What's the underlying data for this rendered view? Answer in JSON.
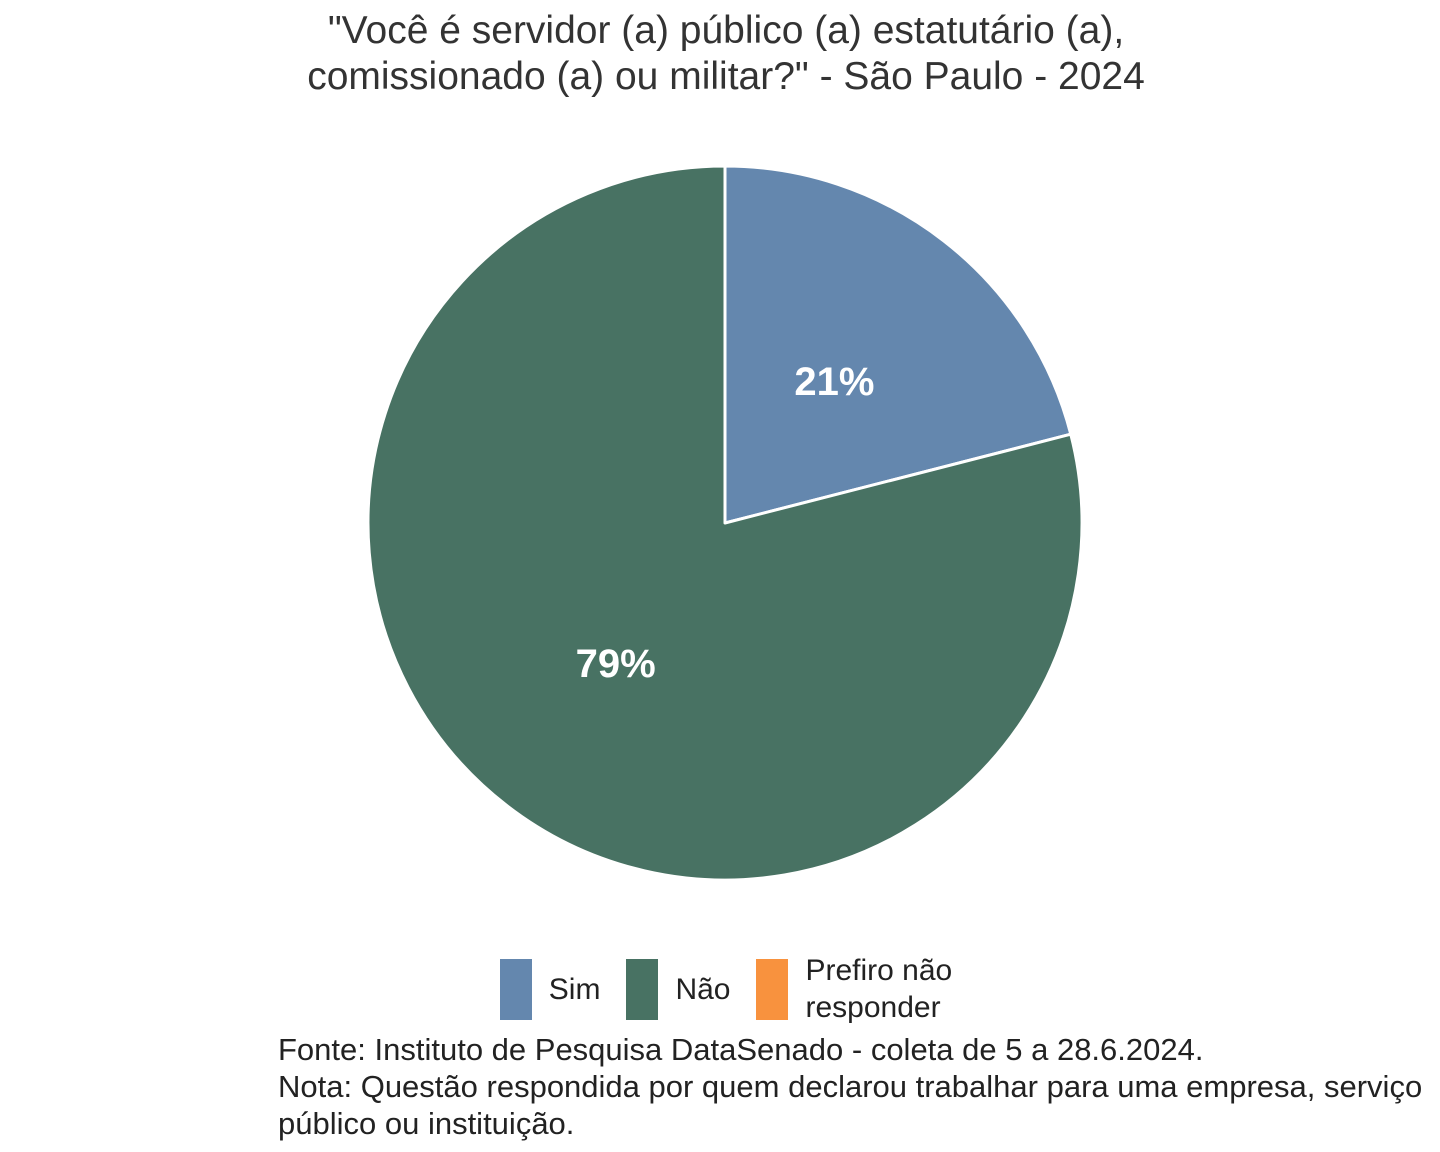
{
  "title": "\"Você é servidor (a) público (a) estatutário (a),\ncomissionado (a) ou militar?\" - São Paulo - 2024",
  "chart_data": {
    "type": "pie",
    "title": "\"Você é servidor (a) público (a) estatutário (a), comissionado (a) ou militar?\" - São Paulo - 2024",
    "categories": [
      "Sim",
      "Não",
      "Prefiro não responder"
    ],
    "values": [
      21,
      79,
      0
    ],
    "slices": [
      {
        "name": "sim",
        "label": "Sim",
        "value": 21,
        "display": "21%",
        "color": "#6487ae"
      },
      {
        "name": "nao",
        "label": "Não",
        "value": 79,
        "display": "79%",
        "color": "#487263"
      },
      {
        "name": "prefiro-nao-responder",
        "label": "Prefiro não responder",
        "value": 0,
        "display": "",
        "color": "#f8923e"
      }
    ],
    "start_angle_deg": 0,
    "direction": "clockwise",
    "slice_label_color": "#ffffff",
    "slice_border_color": "#ffffff",
    "legend_position": "bottom",
    "grid": "off"
  },
  "legend": {
    "items": [
      {
        "label": "Sim",
        "color": "#6487ae"
      },
      {
        "label": "Não",
        "color": "#487263"
      },
      {
        "label": "Prefiro não\nresponder",
        "color": "#f8923e"
      }
    ]
  },
  "footer": {
    "lines": [
      "Fonte: Instituto de Pesquisa DataSenado - coleta de 5 a 28.6.2024.",
      "Nota: Questão respondida por quem declarou trabalhar para uma empresa, serviço",
      "público ou instituição."
    ]
  }
}
